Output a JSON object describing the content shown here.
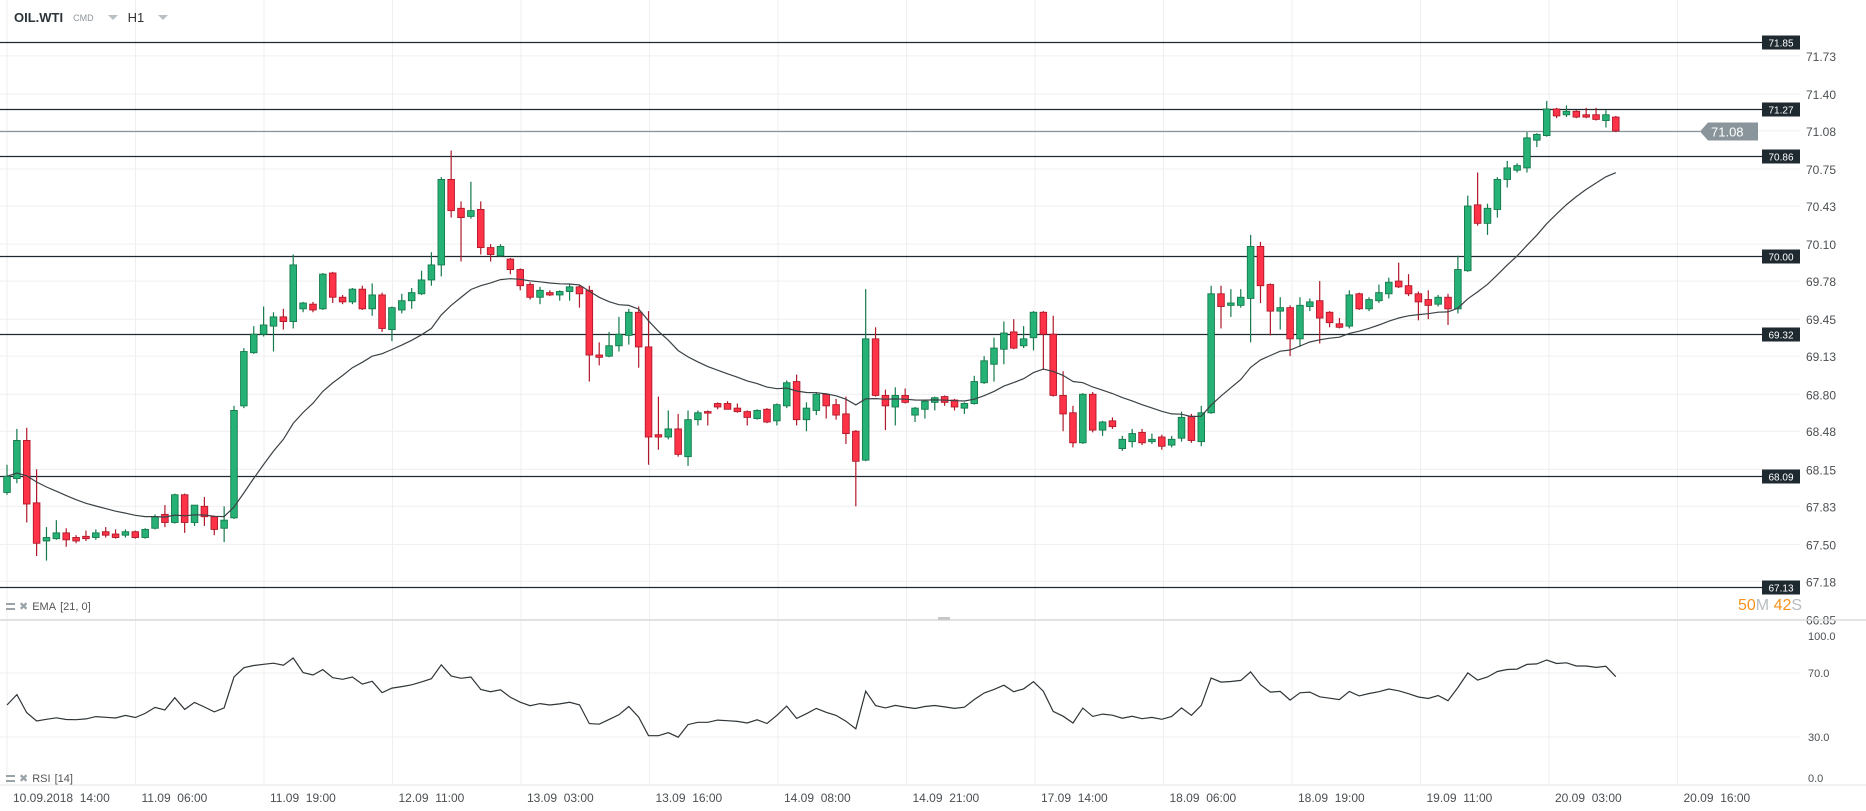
{
  "header": {
    "symbol": "OIL.WTI",
    "category": "CMD",
    "timeframe": "H1"
  },
  "indicators": {
    "ema": {
      "name": "EMA",
      "params": "[21, 0]",
      "period": 21
    },
    "rsi": {
      "name": "RSI",
      "params": "[14]",
      "period": 14
    }
  },
  "countdown": {
    "minutes": "50",
    "m_unit": "M",
    "seconds": "42",
    "s_unit": "S"
  },
  "colors": {
    "up": "#26b276",
    "up_border": "#157a4c",
    "down": "#ff3347",
    "down_border": "#b0182a",
    "level": "#1e2a30",
    "current": "#8a959b",
    "countdown": "#f7931e"
  },
  "chart_data": {
    "type": "candlestick",
    "symbol": "OIL.WTI",
    "interval": "H1",
    "price_axis_ticks": [
      "71.73",
      "71.40",
      "71.08",
      "70.75",
      "70.43",
      "70.10",
      "69.78",
      "69.45",
      "69.13",
      "68.80",
      "68.48",
      "68.15",
      "67.83",
      "67.50",
      "67.18",
      "66.85"
    ],
    "ylim": [
      66.85,
      71.85
    ],
    "level_lines": [
      "71.85",
      "71.27",
      "70.86",
      "70.00",
      "69.32",
      "68.09",
      "67.13"
    ],
    "current_price": "71.08",
    "time_labels": [
      "10.09.2018  14:00",
      "11.09  06:00",
      "11.09  19:00",
      "12.09  11:00",
      "13.09  03:00",
      "13.09  16:00",
      "14.09  08:00",
      "14.09  21:00",
      "17.09  14:00",
      "18.09  06:00",
      "18.09  19:00",
      "19.09  11:00",
      "20.09  03:00",
      "20.09  16:00"
    ],
    "rsi_ticks": [
      "100.0",
      "70.0",
      "30.0",
      "0.0"
    ],
    "rsi_levels": [
      70,
      30
    ],
    "ohlc": [
      [
        67.95,
        68.19,
        67.93,
        68.09
      ],
      [
        68.07,
        68.5,
        68.03,
        68.4
      ],
      [
        68.4,
        68.51,
        67.69,
        67.85
      ],
      [
        67.86,
        68.15,
        67.4,
        67.51
      ],
      [
        67.53,
        67.65,
        67.36,
        67.56
      ],
      [
        67.55,
        67.71,
        67.54,
        67.6
      ],
      [
        67.6,
        67.64,
        67.48,
        67.54
      ],
      [
        67.56,
        67.58,
        67.51,
        67.53
      ],
      [
        67.57,
        67.62,
        67.53,
        67.55
      ],
      [
        67.56,
        67.63,
        67.54,
        67.6
      ],
      [
        67.61,
        67.65,
        67.56,
        67.58
      ],
      [
        67.59,
        67.63,
        67.55,
        67.56
      ],
      [
        67.58,
        67.63,
        67.56,
        67.61
      ],
      [
        67.61,
        67.62,
        67.55,
        67.56
      ],
      [
        67.56,
        67.64,
        67.55,
        67.63
      ],
      [
        67.64,
        67.76,
        67.63,
        67.74
      ],
      [
        67.76,
        67.84,
        67.65,
        67.69
      ],
      [
        67.69,
        67.94,
        67.68,
        67.93
      ],
      [
        67.93,
        67.94,
        67.6,
        67.69
      ],
      [
        67.69,
        67.84,
        67.66,
        67.84
      ],
      [
        67.83,
        67.91,
        67.66,
        67.74
      ],
      [
        67.74,
        67.75,
        67.58,
        67.63
      ],
      [
        67.64,
        67.83,
        67.52,
        67.71
      ],
      [
        67.73,
        68.7,
        67.72,
        68.66
      ],
      [
        68.7,
        69.2,
        68.68,
        69.17
      ],
      [
        69.16,
        69.39,
        69.15,
        69.32
      ],
      [
        69.32,
        69.56,
        69.3,
        69.4
      ],
      [
        69.39,
        69.51,
        69.17,
        69.47
      ],
      [
        69.47,
        69.54,
        69.36,
        69.43
      ],
      [
        69.43,
        70.01,
        69.37,
        69.92
      ],
      [
        69.54,
        69.6,
        69.51,
        69.59
      ],
      [
        69.58,
        69.6,
        69.51,
        69.53
      ],
      [
        69.54,
        69.85,
        69.53,
        69.84
      ],
      [
        69.85,
        69.86,
        69.59,
        69.64
      ],
      [
        69.64,
        69.66,
        69.58,
        69.6
      ],
      [
        69.6,
        69.72,
        69.58,
        69.71
      ],
      [
        69.71,
        69.74,
        69.53,
        69.54
      ],
      [
        69.54,
        69.76,
        69.48,
        69.66
      ],
      [
        69.66,
        69.68,
        69.34,
        69.37
      ],
      [
        69.36,
        69.56,
        69.26,
        69.55
      ],
      [
        69.53,
        69.67,
        69.5,
        69.61
      ],
      [
        69.61,
        69.72,
        69.54,
        69.68
      ],
      [
        69.67,
        69.87,
        69.66,
        69.79
      ],
      [
        69.79,
        70.03,
        69.74,
        69.92
      ],
      [
        69.92,
        70.68,
        69.82,
        70.66
      ],
      [
        70.66,
        70.91,
        70.33,
        70.39
      ],
      [
        70.41,
        70.47,
        69.95,
        70.33
      ],
      [
        70.34,
        70.64,
        70.32,
        70.39
      ],
      [
        70.4,
        70.47,
        70.01,
        70.07
      ],
      [
        70.07,
        70.1,
        69.95,
        70.01
      ],
      [
        70.0,
        70.1,
        69.99,
        70.08
      ],
      [
        69.97,
        69.98,
        69.84,
        69.88
      ],
      [
        69.88,
        69.89,
        69.7,
        69.74
      ],
      [
        69.75,
        69.77,
        69.62,
        69.64
      ],
      [
        69.64,
        69.73,
        69.58,
        69.7
      ],
      [
        69.68,
        69.7,
        69.65,
        69.66
      ],
      [
        69.66,
        69.7,
        69.61,
        69.69
      ],
      [
        69.69,
        69.75,
        69.61,
        69.73
      ],
      [
        69.73,
        69.75,
        69.55,
        69.67
      ],
      [
        69.7,
        69.74,
        68.91,
        69.14
      ],
      [
        69.14,
        69.25,
        69.05,
        69.12
      ],
      [
        69.13,
        69.34,
        69.12,
        69.22
      ],
      [
        69.22,
        69.47,
        69.17,
        69.32
      ],
      [
        69.31,
        69.54,
        69.23,
        69.51
      ],
      [
        69.51,
        69.56,
        69.03,
        69.21
      ],
      [
        69.21,
        69.52,
        68.19,
        68.43
      ],
      [
        68.45,
        68.78,
        68.32,
        68.43
      ],
      [
        68.43,
        68.66,
        68.41,
        68.5
      ],
      [
        68.5,
        68.63,
        68.26,
        68.28
      ],
      [
        68.26,
        68.66,
        68.18,
        68.58
      ],
      [
        68.58,
        68.66,
        68.53,
        68.64
      ],
      [
        68.65,
        68.66,
        68.53,
        68.64
      ],
      [
        68.72,
        68.73,
        68.67,
        68.69
      ],
      [
        68.72,
        68.74,
        68.67,
        68.67
      ],
      [
        68.68,
        68.72,
        68.64,
        68.65
      ],
      [
        68.65,
        68.66,
        68.53,
        68.6
      ],
      [
        68.59,
        68.67,
        68.58,
        68.66
      ],
      [
        68.67,
        68.68,
        68.55,
        68.56
      ],
      [
        68.57,
        68.72,
        68.53,
        68.71
      ],
      [
        68.7,
        68.92,
        68.68,
        68.9
      ],
      [
        68.91,
        68.97,
        68.53,
        68.58
      ],
      [
        68.58,
        68.73,
        68.48,
        68.68
      ],
      [
        68.66,
        68.82,
        68.62,
        68.8
      ],
      [
        68.8,
        68.81,
        68.59,
        68.7
      ],
      [
        68.71,
        68.76,
        68.58,
        68.62
      ],
      [
        68.63,
        68.78,
        68.37,
        68.46
      ],
      [
        68.48,
        68.49,
        67.83,
        68.22
      ],
      [
        68.23,
        69.71,
        68.22,
        69.28
      ],
      [
        69.28,
        69.38,
        68.78,
        68.79
      ],
      [
        68.79,
        68.84,
        68.49,
        68.7
      ],
      [
        68.69,
        68.86,
        68.53,
        68.79
      ],
      [
        68.79,
        68.85,
        68.72,
        68.73
      ],
      [
        68.62,
        68.69,
        68.56,
        68.68
      ],
      [
        68.67,
        68.75,
        68.59,
        68.74
      ],
      [
        68.73,
        68.78,
        68.66,
        68.77
      ],
      [
        68.78,
        68.79,
        68.7,
        68.73
      ],
      [
        68.75,
        68.76,
        68.66,
        68.69
      ],
      [
        68.68,
        68.73,
        68.63,
        68.72
      ],
      [
        68.72,
        68.96,
        68.71,
        68.91
      ],
      [
        68.9,
        69.13,
        68.89,
        69.09
      ],
      [
        69.06,
        69.29,
        68.91,
        69.2
      ],
      [
        69.19,
        69.43,
        69.06,
        69.33
      ],
      [
        69.34,
        69.45,
        69.19,
        69.2
      ],
      [
        69.22,
        69.39,
        69.2,
        69.28
      ],
      [
        69.29,
        69.52,
        69.18,
        69.51
      ],
      [
        69.51,
        69.52,
        69.01,
        69.32
      ],
      [
        69.32,
        69.48,
        68.78,
        68.79
      ],
      [
        68.79,
        69.0,
        68.48,
        68.63
      ],
      [
        68.64,
        68.7,
        68.34,
        68.38
      ],
      [
        68.38,
        68.81,
        68.37,
        68.8
      ],
      [
        68.8,
        68.82,
        68.47,
        68.49
      ],
      [
        68.49,
        68.57,
        68.44,
        68.56
      ],
      [
        68.57,
        68.6,
        68.5,
        68.52
      ],
      [
        68.33,
        68.44,
        68.31,
        68.41
      ],
      [
        68.39,
        68.5,
        68.34,
        68.46
      ],
      [
        68.47,
        68.5,
        68.36,
        68.38
      ],
      [
        68.39,
        68.46,
        68.37,
        68.41
      ],
      [
        68.43,
        68.45,
        68.32,
        68.35
      ],
      [
        68.36,
        68.44,
        68.34,
        68.41
      ],
      [
        68.42,
        68.65,
        68.39,
        68.6
      ],
      [
        68.61,
        68.63,
        68.38,
        68.4
      ],
      [
        68.39,
        68.7,
        68.35,
        68.64
      ],
      [
        68.64,
        69.74,
        68.63,
        69.67
      ],
      [
        69.67,
        69.74,
        69.37,
        69.56
      ],
      [
        69.57,
        69.71,
        69.47,
        69.59
      ],
      [
        69.57,
        69.71,
        69.55,
        69.64
      ],
      [
        69.63,
        70.18,
        69.25,
        70.08
      ],
      [
        70.08,
        70.12,
        69.59,
        69.74
      ],
      [
        69.75,
        69.76,
        69.31,
        69.52
      ],
      [
        69.52,
        69.64,
        69.36,
        69.55
      ],
      [
        69.55,
        69.57,
        69.13,
        69.28
      ],
      [
        69.28,
        69.64,
        69.21,
        69.57
      ],
      [
        69.56,
        69.63,
        69.52,
        69.6
      ],
      [
        69.61,
        69.78,
        69.24,
        69.46
      ],
      [
        69.51,
        69.52,
        69.38,
        69.42
      ],
      [
        69.41,
        69.46,
        69.37,
        69.38
      ],
      [
        69.39,
        69.7,
        69.37,
        69.66
      ],
      [
        69.67,
        69.68,
        69.53,
        69.54
      ],
      [
        69.54,
        69.64,
        69.52,
        69.62
      ],
      [
        69.61,
        69.75,
        69.59,
        69.68
      ],
      [
        69.67,
        69.81,
        69.63,
        69.77
      ],
      [
        69.78,
        69.94,
        69.72,
        69.73
      ],
      [
        69.74,
        69.84,
        69.65,
        69.67
      ],
      [
        69.67,
        69.69,
        69.44,
        69.6
      ],
      [
        69.62,
        69.7,
        69.45,
        69.57
      ],
      [
        69.58,
        69.66,
        69.56,
        69.64
      ],
      [
        69.64,
        69.67,
        69.4,
        69.54
      ],
      [
        69.54,
        70.0,
        69.5,
        69.88
      ],
      [
        69.87,
        70.52,
        69.86,
        70.43
      ],
      [
        70.44,
        70.72,
        70.26,
        70.28
      ],
      [
        70.28,
        70.45,
        70.18,
        70.41
      ],
      [
        70.4,
        70.68,
        70.33,
        70.66
      ],
      [
        70.66,
        70.82,
        70.59,
        70.76
      ],
      [
        70.74,
        70.8,
        70.72,
        70.78
      ],
      [
        70.76,
        71.07,
        70.72,
        71.02
      ],
      [
        71.0,
        71.06,
        70.94,
        71.05
      ],
      [
        71.04,
        71.34,
        71.03,
        71.27
      ],
      [
        71.27,
        71.28,
        71.19,
        71.21
      ],
      [
        71.22,
        71.3,
        71.2,
        71.25
      ],
      [
        71.25,
        71.26,
        71.19,
        71.2
      ],
      [
        71.22,
        71.28,
        71.19,
        71.2
      ],
      [
        71.22,
        71.28,
        71.17,
        71.18
      ],
      [
        71.17,
        71.26,
        71.11,
        71.22
      ],
      [
        71.2,
        71.21,
        71.07,
        71.08
      ]
    ]
  }
}
